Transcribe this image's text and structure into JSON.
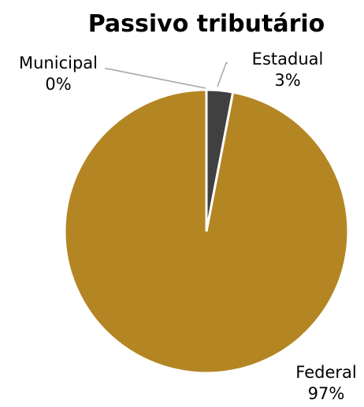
{
  "chart_data": {
    "type": "pie",
    "title": "Passivo tributário",
    "categories": [
      "Estadual",
      "Federal",
      "Municipal"
    ],
    "values": [
      3,
      97,
      0
    ],
    "value_labels": [
      "3%",
      "97%",
      "0%"
    ],
    "colors": [
      "#404040",
      "#B48623",
      "#A6A6A6"
    ],
    "legend": "none"
  }
}
